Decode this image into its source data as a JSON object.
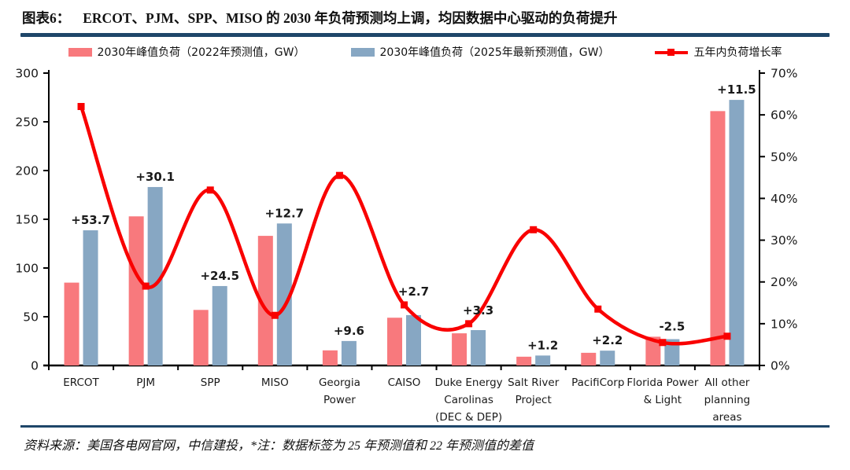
{
  "title": {
    "prefix": "图表6：",
    "text": "ERCOT、PJM、SPP、MISO 的 2030 年负荷预测均上调，均因数据中心驱动的负荷提升"
  },
  "legend": {
    "bars_2022_label": "2030年峰值负荷（2022年预测值，GW）",
    "bars_2025_label": "2030年峰值负荷（2025年最新预测值，GW）",
    "line_label": "五年内负荷增长率"
  },
  "colors": {
    "accent_navy": "#1E4669",
    "bar_2022_pink": "#F8797D",
    "bar_2025_blue": "#87A7C3",
    "line_red": "#F90000",
    "axis_black": "#000000",
    "label_text": "#1A1A1A"
  },
  "chart_data": {
    "type": "bar",
    "note": "grouped bars on left axis (GW) plus smooth line series on right axis (%)",
    "categories": [
      "ERCOT",
      "PJM",
      "SPP",
      "MISO",
      "Georgia Power",
      "CAISO",
      "Duke Energy Carolinas (DEC & DEP)",
      "Salt River Project",
      "PacifiCorp",
      "Florida Power & Light",
      "All other planning areas"
    ],
    "category_lines": [
      [
        "ERCOT"
      ],
      [
        "PJM"
      ],
      [
        "SPP"
      ],
      [
        "MISO"
      ],
      [
        "Georgia",
        "Power"
      ],
      [
        "CAISO"
      ],
      [
        "Duke Energy",
        "Carolinas",
        "(DEC & DEP)"
      ],
      [
        "Salt River",
        "Project"
      ],
      [
        "PacifiCorp"
      ],
      [
        "Florida Power",
        "& Light"
      ],
      [
        "All other",
        "planning",
        "areas"
      ]
    ],
    "series": [
      {
        "name": "2030年峰值负荷（2022年预测值，GW）",
        "kind": "bar",
        "color": "#F8797D",
        "values": [
          85,
          153,
          57,
          133,
          15.5,
          49,
          33,
          9,
          13,
          29.5,
          261
        ]
      },
      {
        "name": "2030年峰值负荷（2025年最新预测值，GW）",
        "kind": "bar",
        "color": "#87A7C3",
        "values": [
          138.7,
          183.1,
          81.5,
          145.7,
          25.1,
          51.7,
          36.3,
          10.2,
          15.2,
          27,
          272.5
        ]
      },
      {
        "name": "五年内负荷增长率",
        "kind": "line",
        "color": "#F90000",
        "values_pct": [
          62,
          19,
          42,
          12,
          45.5,
          14.5,
          10,
          32.5,
          13.5,
          5.5,
          7
        ]
      }
    ],
    "data_labels": [
      "+53.7",
      "+30.1",
      "+24.5",
      "+12.7",
      "+9.6",
      "+2.7",
      "+3.3",
      "+1.2",
      "+2.2",
      "-2.5",
      "+11.5"
    ],
    "left_axis": {
      "min": 0,
      "max": 300,
      "step": 50,
      "ticks": [
        "0",
        "50",
        "100",
        "150",
        "200",
        "250",
        "300"
      ]
    },
    "right_axis": {
      "min": 0,
      "max": 70,
      "step": 10,
      "ticks": [
        "0%",
        "10%",
        "20%",
        "30%",
        "40%",
        "50%",
        "60%",
        "70%"
      ]
    },
    "grid": false,
    "legend_position": "top"
  },
  "footer": {
    "source": "资料来源：美国各电网官网，中信建投，*注：数据标签为 25 年预测值和 22 年预测值的差值"
  }
}
